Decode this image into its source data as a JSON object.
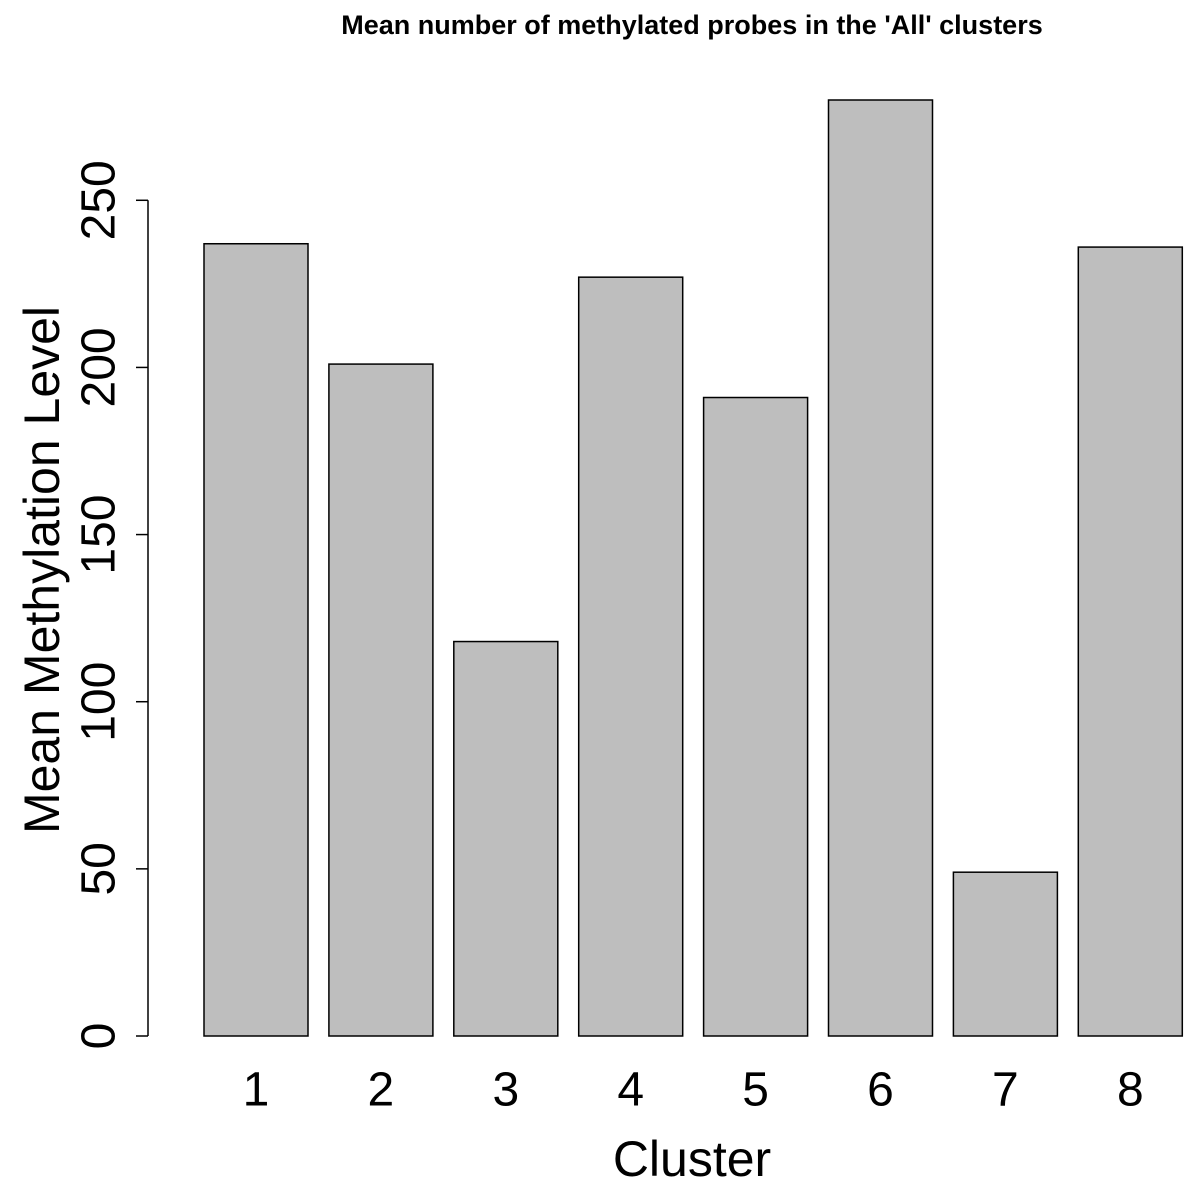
{
  "chart_data": {
    "type": "bar",
    "title": "Mean number of methylated probes in the 'All' clusters",
    "x_label": "Cluster",
    "y_label": "Mean Methylation Level",
    "categories": [
      "1",
      "2",
      "3",
      "4",
      "5",
      "6",
      "7",
      "8"
    ],
    "values": [
      237,
      201,
      118,
      227,
      191,
      280,
      49,
      236
    ],
    "color": "#bebebe",
    "ylim": [
      0,
      280
    ],
    "yticks": [
      0,
      50,
      100,
      150,
      200,
      250
    ],
    "grid": false
  }
}
